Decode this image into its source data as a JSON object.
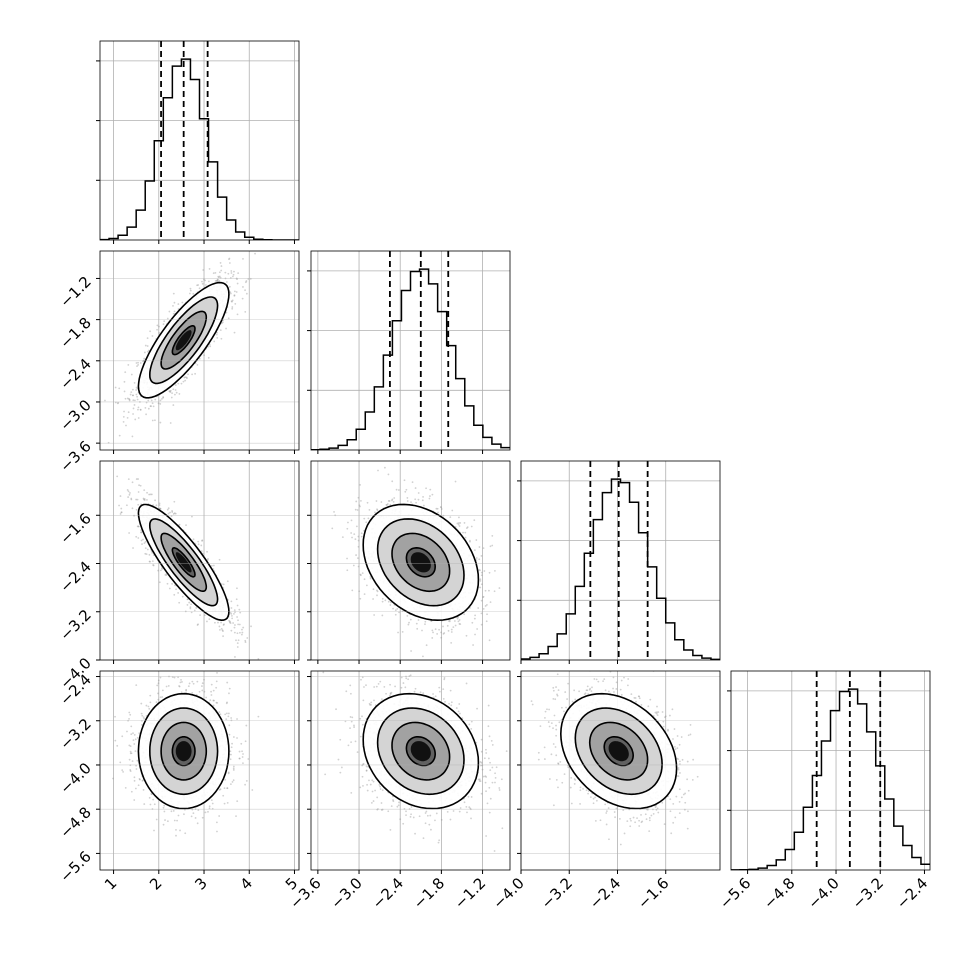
{
  "chart_data": {
    "type": "corner",
    "parameters": [
      {
        "range": [
          0.7,
          5.1
        ],
        "ticks": [
          1,
          2,
          3,
          4,
          5
        ],
        "tick_labels": [
          "1",
          "2",
          "3",
          "4",
          "5"
        ],
        "quantiles": [
          2.05,
          2.55,
          3.08
        ],
        "mean": 2.55,
        "sd": 0.5
      },
      {
        "range": [
          -3.7,
          -0.8
        ],
        "ticks": [
          -3.6,
          -3.0,
          -2.4,
          -1.8,
          -1.2
        ],
        "tick_labels": [
          "−3.6",
          "−3.0",
          "−2.4",
          "−1.8",
          "−1.2"
        ],
        "quantiles": [
          -2.55,
          -2.1,
          -1.7
        ],
        "mean": -2.1,
        "sd": 0.42
      },
      {
        "range": [
          -4.0,
          -0.7
        ],
        "ticks": [
          -4.0,
          -3.2,
          -2.4,
          -1.6
        ],
        "tick_labels": [
          "−4.0",
          "−3.2",
          "−2.4",
          "−1.6"
        ],
        "quantiles": [
          -2.85,
          -2.38,
          -1.9
        ],
        "mean": -2.38,
        "sd": 0.48
      },
      {
        "range": [
          -5.9,
          -2.3
        ],
        "ticks": [
          -5.6,
          -4.8,
          -4.0,
          -3.2,
          -2.4
        ],
        "tick_labels": [
          "−5.6",
          "−4.8",
          "−4.0",
          "−3.2",
          "−2.4"
        ],
        "quantiles": [
          -4.35,
          -3.75,
          -3.2
        ],
        "mean": -3.75,
        "sd": 0.52
      }
    ],
    "correlations": [
      [
        1.0,
        0.8,
        -0.85,
        0.0
      ],
      [
        0.8,
        1.0,
        -0.3,
        -0.2
      ],
      [
        -0.85,
        -0.3,
        1.0,
        -0.3
      ],
      [
        0.0,
        -0.2,
        -0.3,
        1.0
      ]
    ],
    "quantile_lines": [
      0.16,
      0.5,
      0.84
    ],
    "contour_levels": [
      0.5,
      1.0,
      1.5,
      2.0
    ],
    "grid": true
  },
  "colors": {
    "ink": "#000000",
    "grid": "#b0b0b0",
    "scatter": "#9a9a9a",
    "density": "#3c3c3c"
  }
}
